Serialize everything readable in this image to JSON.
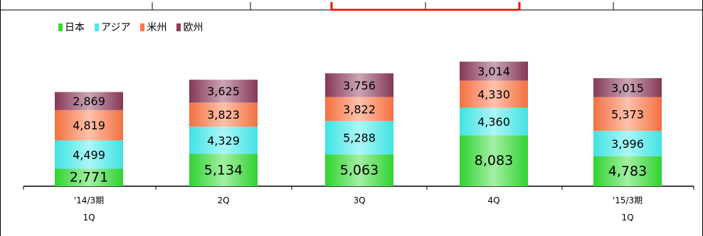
{
  "chart_data": {
    "type": "bar",
    "stacked": true,
    "categories": [
      [
        "'14/3期",
        "1Q"
      ],
      [
        "2Q"
      ],
      [
        "3Q"
      ],
      [
        "4Q"
      ],
      [
        "'15/3期",
        "1Q"
      ]
    ],
    "series": [
      {
        "name": "日本",
        "color": "#33dd33",
        "values": [
          2771,
          5134,
          5063,
          8083,
          4783
        ],
        "labels": [
          "2,771",
          "5,134",
          "5,063",
          "8,083",
          "4,783"
        ]
      },
      {
        "name": "アジア",
        "color": "#44eeee",
        "values": [
          4499,
          4329,
          5288,
          4360,
          3996
        ],
        "labels": [
          "4,499",
          "4,329",
          "5,288",
          "4,360",
          "3,996"
        ]
      },
      {
        "name": "米州",
        "color": "#ff7744",
        "values": [
          4819,
          3823,
          3822,
          4330,
          5373
        ],
        "labels": [
          "4,819",
          "3,823",
          "3,822",
          "4,330",
          "5,373"
        ]
      },
      {
        "name": "欧州",
        "color": "#8c3a5a",
        "values": [
          2869,
          3625,
          3756,
          3014,
          3015
        ],
        "labels": [
          "2,869",
          "3,625",
          "3,756",
          "3,014",
          "3,015"
        ]
      }
    ],
    "legend_position": "top-left",
    "grid": false,
    "title": "",
    "xlabel": "",
    "ylabel": ""
  }
}
